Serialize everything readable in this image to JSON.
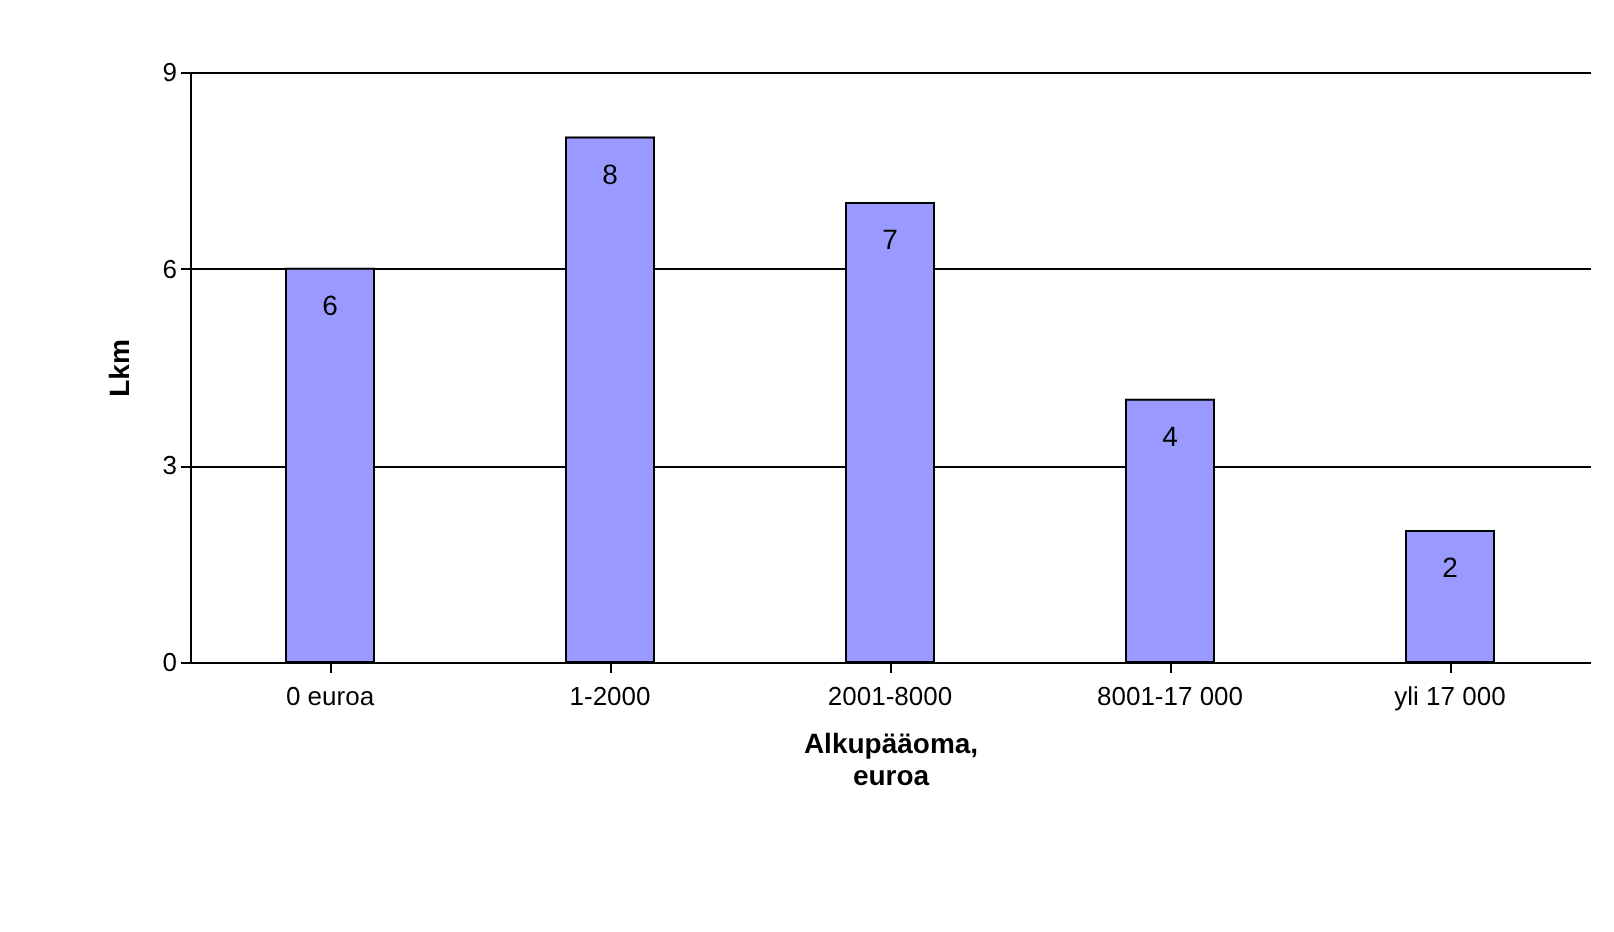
{
  "chart_data": {
    "type": "bar",
    "xlabel": "Alkupääoma,\neuroa",
    "ylabel": "Lkm",
    "categories": [
      "0 euroa",
      "1-2000",
      "2001-8000",
      "8001-17 000",
      "yli 17 000"
    ],
    "values": [
      6,
      8,
      7,
      4,
      2
    ],
    "color": "#9999ff",
    "ylim": [
      0,
      9
    ],
    "yticks": [
      0,
      3,
      6,
      9
    ],
    "grid": "y",
    "data_labels": true
  }
}
